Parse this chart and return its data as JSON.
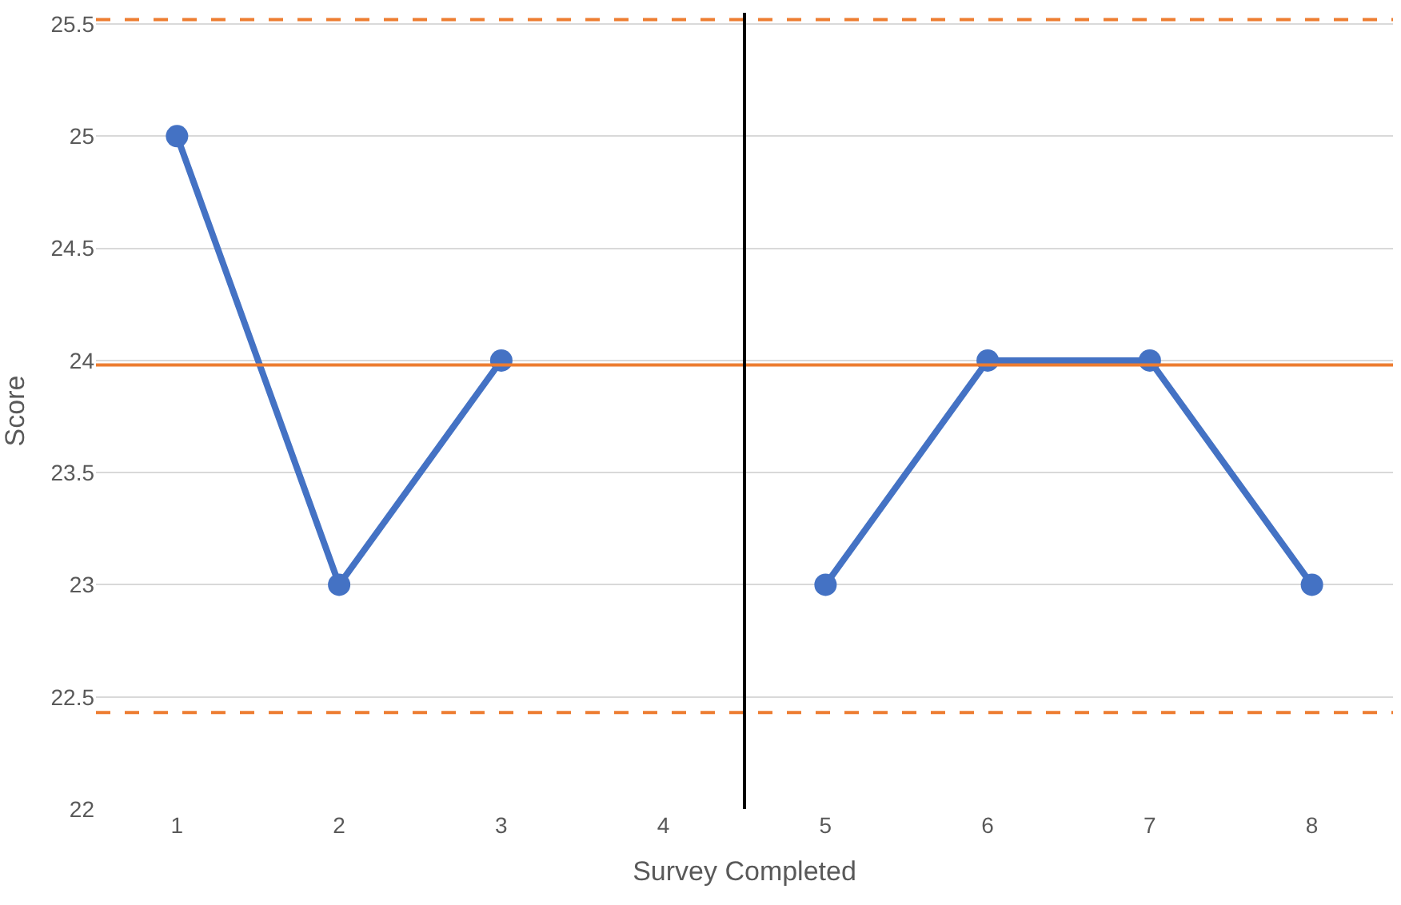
{
  "chart_data": {
    "type": "line",
    "xlabel": "Survey Completed",
    "ylabel": "Score",
    "x": [
      1,
      2,
      3,
      4,
      5,
      6,
      7,
      8
    ],
    "series": [
      {
        "color": "#4472c4",
        "values": [
          25,
          23,
          24,
          null,
          23,
          24,
          24,
          23
        ]
      }
    ],
    "xlim": [
      0.5,
      8.5
    ],
    "xticks": [
      1,
      2,
      3,
      4,
      5,
      6,
      7,
      8
    ],
    "ylim": [
      22,
      25.55
    ],
    "yticks": [
      22,
      22.5,
      23,
      23.5,
      24,
      24.5,
      25,
      25.5
    ],
    "grid": "y",
    "legend": false,
    "marker": "circle",
    "line_style": "solid",
    "ref_lines": [
      {
        "axis": "y",
        "value": 23.98,
        "color": "#ed7d31",
        "line_style": "solid"
      },
      {
        "axis": "y",
        "value": 25.52,
        "color": "#ed7d31",
        "line_style": "dashed"
      },
      {
        "axis": "y",
        "value": 22.43,
        "color": "#ed7d31",
        "line_style": "dashed"
      },
      {
        "axis": "x",
        "value": 4.5,
        "color": "#000000",
        "line_style": "solid"
      }
    ]
  }
}
